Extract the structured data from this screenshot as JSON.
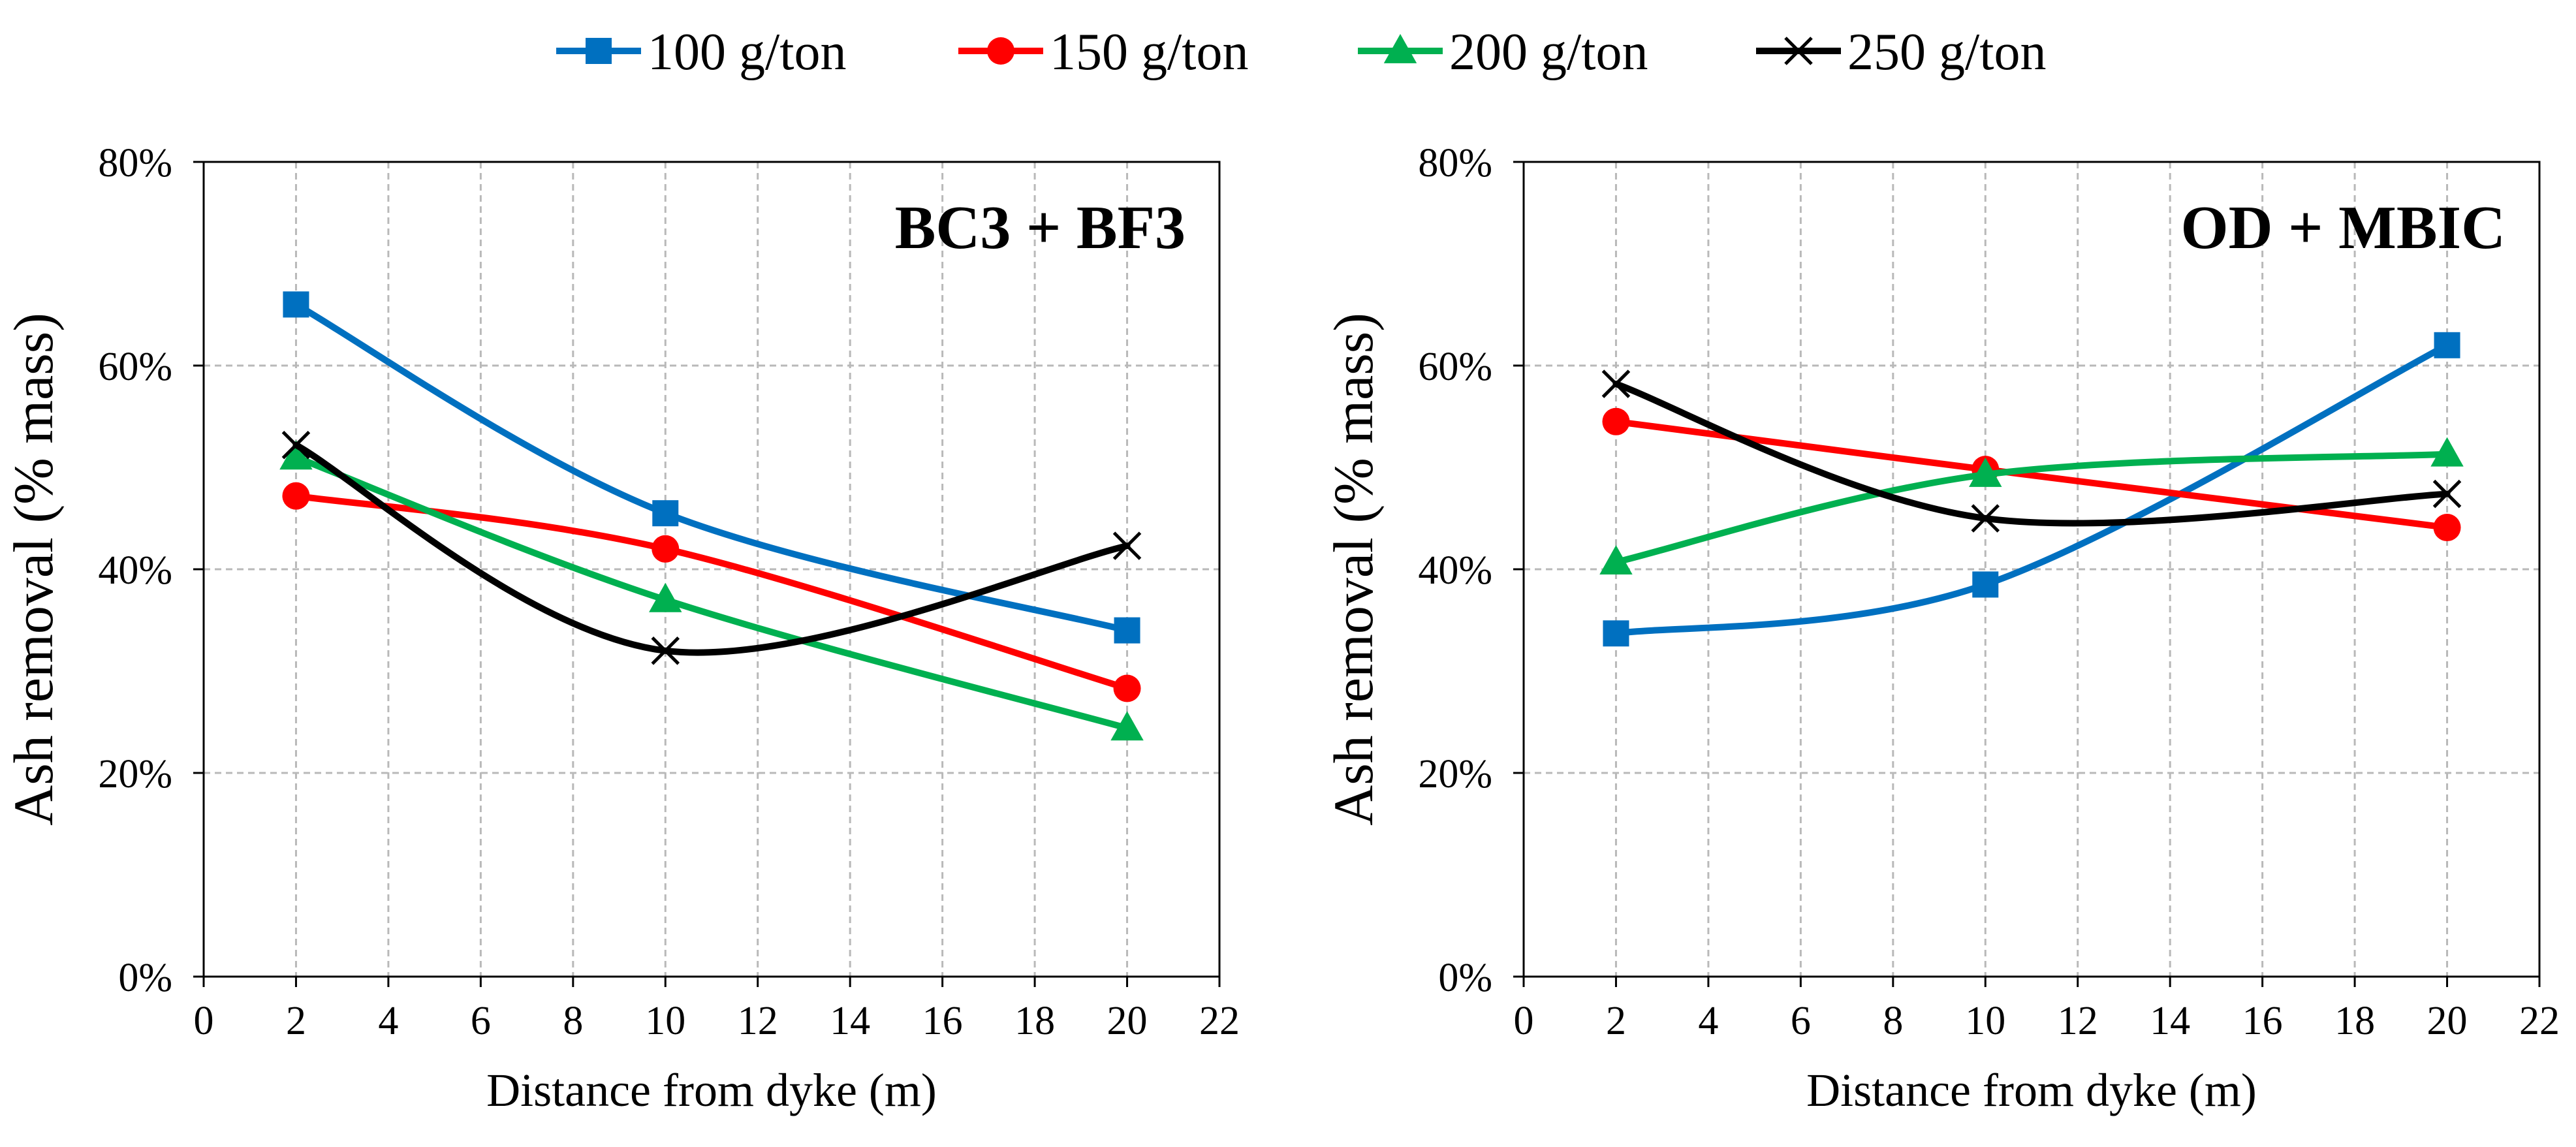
{
  "legend": [
    {
      "label": "100 g/ton",
      "color": "#0070C0",
      "marker": "square"
    },
    {
      "label": "150 g/ton",
      "color": "#FF0000",
      "marker": "circle"
    },
    {
      "label": "200 g/ton",
      "color": "#00B050",
      "marker": "triangle"
    },
    {
      "label": "250 g/ton",
      "color": "#000000",
      "marker": "x"
    }
  ],
  "chart_data": [
    {
      "type": "line",
      "title": "BC3 + BF3",
      "xlabel": "Distance from dyke (m)",
      "ylabel": "Ash removal (% mass)",
      "xlim": [
        0,
        22
      ],
      "ylim": [
        0,
        80
      ],
      "xticks": [
        "0",
        "2",
        "4",
        "6",
        "8",
        "10",
        "12",
        "14",
        "16",
        "18",
        "20",
        "22"
      ],
      "yticks": [
        "0%",
        "20%",
        "40%",
        "60%",
        "80%"
      ],
      "x": [
        2,
        10,
        20
      ],
      "series": [
        {
          "name": "100 g/ton",
          "values": [
            66,
            45.5,
            34
          ]
        },
        {
          "name": "150 g/ton",
          "values": [
            47.2,
            42,
            28.3
          ]
        },
        {
          "name": "200 g/ton",
          "values": [
            51,
            37,
            24.4
          ]
        },
        {
          "name": "250 g/ton",
          "values": [
            52.2,
            32,
            42.3
          ]
        }
      ]
    },
    {
      "type": "line",
      "title": "OD + MBIC",
      "xlabel": "Distance from dyke (m)",
      "ylabel": "Ash removal (% mass)",
      "xlim": [
        0,
        22
      ],
      "ylim": [
        0,
        80
      ],
      "xticks": [
        "0",
        "2",
        "4",
        "6",
        "8",
        "10",
        "12",
        "14",
        "16",
        "18",
        "20",
        "22"
      ],
      "yticks": [
        "0%",
        "20%",
        "40%",
        "60%",
        "80%"
      ],
      "x": [
        2,
        10,
        20
      ],
      "series": [
        {
          "name": "100 g/ton",
          "values": [
            33.7,
            38.5,
            62
          ]
        },
        {
          "name": "150 g/ton",
          "values": [
            54.5,
            49.8,
            44.1
          ]
        },
        {
          "name": "200 g/ton",
          "values": [
            40.7,
            49.3,
            51.3
          ]
        },
        {
          "name": "250 g/ton",
          "values": [
            58.2,
            45,
            47.4
          ]
        }
      ]
    }
  ]
}
